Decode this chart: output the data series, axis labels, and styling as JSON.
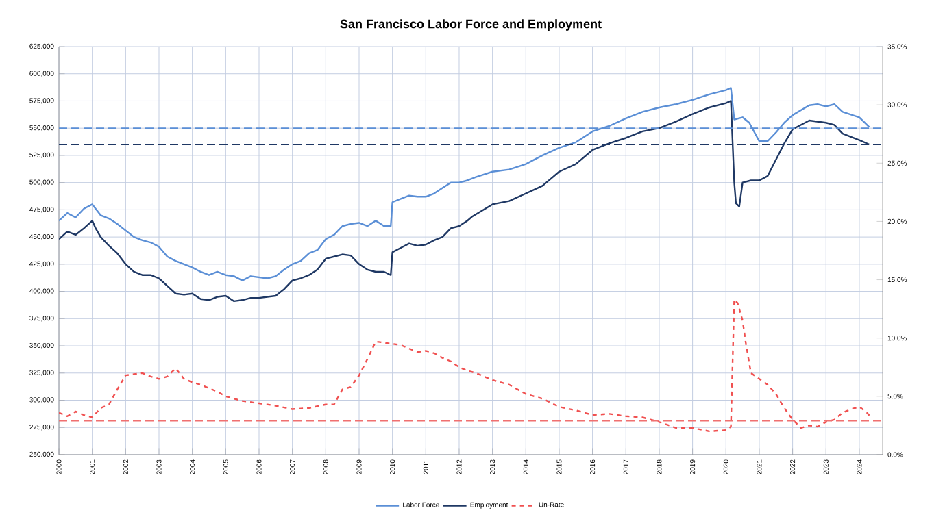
{
  "chart_data": {
    "type": "line",
    "title": "San Francisco Labor Force and Employment",
    "xlim": [
      2000,
      2024.7
    ],
    "xticks": [
      2000,
      2001,
      2002,
      2003,
      2004,
      2005,
      2006,
      2007,
      2008,
      2009,
      2010,
      2011,
      2012,
      2013,
      2014,
      2015,
      2016,
      2017,
      2018,
      2019,
      2020,
      2021,
      2022,
      2023,
      2024
    ],
    "ylim": [
      250000,
      625000
    ],
    "yticks": [
      {
        "value": 250000,
        "label": "250,000"
      },
      {
        "value": 275000,
        "label": "275,000"
      },
      {
        "value": 300000,
        "label": "300,000"
      },
      {
        "value": 325000,
        "label": "325,000"
      },
      {
        "value": 350000,
        "label": "350,000"
      },
      {
        "value": 375000,
        "label": "375,000"
      },
      {
        "value": 400000,
        "label": "400,000"
      },
      {
        "value": 425000,
        "label": "425,000"
      },
      {
        "value": 450000,
        "label": "450,000"
      },
      {
        "value": 475000,
        "label": "475,000"
      },
      {
        "value": 500000,
        "label": "500,000"
      },
      {
        "value": 525000,
        "label": "525,000"
      },
      {
        "value": 550000,
        "label": "550,000"
      },
      {
        "value": 575000,
        "label": "575,000"
      },
      {
        "value": 600000,
        "label": "600,000"
      },
      {
        "value": 625000,
        "label": "625,000"
      }
    ],
    "y2lim": [
      0,
      35
    ],
    "y2ticks": [
      {
        "value": 0,
        "label": "0.0%"
      },
      {
        "value": 5,
        "label": "5.0%"
      },
      {
        "value": 10,
        "label": "10.0%"
      },
      {
        "value": 15,
        "label": "15.0%"
      },
      {
        "value": 20,
        "label": "20.0%"
      },
      {
        "value": 25,
        "label": "25.0%"
      },
      {
        "value": 30,
        "label": "30.0%"
      },
      {
        "value": 35,
        "label": "35.0%"
      }
    ],
    "grid": true,
    "legend": "bottom",
    "series": [
      {
        "name": "Labor Force",
        "color": "#5b8fd6",
        "line_style": "solid",
        "x": [
          2000.0,
          2000.25,
          2000.5,
          2000.75,
          2001.0,
          2001.25,
          2001.5,
          2001.75,
          2002.0,
          2002.25,
          2002.5,
          2002.75,
          2003.0,
          2003.25,
          2003.5,
          2003.75,
          2004.0,
          2004.25,
          2004.5,
          2004.75,
          2005.0,
          2005.25,
          2005.5,
          2005.75,
          2006.0,
          2006.25,
          2006.5,
          2006.75,
          2007.0,
          2007.25,
          2007.5,
          2007.75,
          2008.0,
          2008.25,
          2008.5,
          2008.75,
          2009.0,
          2009.25,
          2009.5,
          2009.75,
          2009.95,
          2010.0,
          2010.25,
          2010.5,
          2010.75,
          2011.0,
          2011.25,
          2011.5,
          2011.75,
          2012.0,
          2012.25,
          2012.5,
          2013.0,
          2013.5,
          2014.0,
          2014.5,
          2015.0,
          2015.5,
          2016.0,
          2016.5,
          2017.0,
          2017.5,
          2018.0,
          2018.5,
          2019.0,
          2019.5,
          2020.0,
          2020.15,
          2020.25,
          2020.5,
          2020.7,
          2021.0,
          2021.25,
          2021.5,
          2021.75,
          2022.0,
          2022.5,
          2022.75,
          2023.0,
          2023.25,
          2023.5,
          2024.0,
          2024.3
        ],
        "values": [
          465000,
          472000,
          468000,
          476000,
          480000,
          470000,
          467000,
          462000,
          456000,
          450000,
          447000,
          445000,
          441000,
          432000,
          428000,
          425000,
          422000,
          418000,
          415000,
          418000,
          415000,
          414000,
          410000,
          414000,
          413000,
          412000,
          414000,
          420000,
          425000,
          428000,
          435000,
          438000,
          448000,
          452000,
          460000,
          462000,
          463000,
          460000,
          465000,
          460000,
          460000,
          482000,
          485000,
          488000,
          487000,
          487000,
          490000,
          495000,
          500000,
          500000,
          502000,
          505000,
          510000,
          512000,
          517000,
          525000,
          532000,
          537000,
          547000,
          552000,
          559000,
          565000,
          569000,
          572000,
          576000,
          581000,
          585000,
          587000,
          558000,
          560000,
          555000,
          538000,
          538000,
          546000,
          555000,
          562000,
          571000,
          572000,
          570000,
          572000,
          565000,
          560000,
          551000
        ]
      },
      {
        "name": "Employment",
        "color": "#1f3864",
        "line_style": "solid",
        "x": [
          2000.0,
          2000.25,
          2000.5,
          2000.75,
          2001.0,
          2001.1,
          2001.25,
          2001.5,
          2001.75,
          2002.0,
          2002.25,
          2002.5,
          2002.75,
          2003.0,
          2003.25,
          2003.5,
          2003.75,
          2004.0,
          2004.25,
          2004.5,
          2004.75,
          2005.0,
          2005.25,
          2005.5,
          2005.75,
          2006.0,
          2006.25,
          2006.5,
          2006.75,
          2007.0,
          2007.25,
          2007.5,
          2007.75,
          2008.0,
          2008.25,
          2008.5,
          2008.75,
          2009.0,
          2009.25,
          2009.5,
          2009.75,
          2009.95,
          2010.0,
          2010.25,
          2010.5,
          2010.75,
          2011.0,
          2011.25,
          2011.5,
          2011.75,
          2012.0,
          2012.25,
          2012.4,
          2013.0,
          2013.5,
          2014.0,
          2014.5,
          2015.0,
          2015.5,
          2016.0,
          2016.5,
          2017.0,
          2017.5,
          2018.0,
          2018.5,
          2019.0,
          2019.5,
          2020.0,
          2020.15,
          2020.25,
          2020.3,
          2020.4,
          2020.5,
          2020.75,
          2021.0,
          2021.25,
          2021.5,
          2021.75,
          2022.0,
          2022.5,
          2023.0,
          2023.25,
          2023.5,
          2024.0,
          2024.3
        ],
        "values": [
          448000,
          455000,
          452000,
          458000,
          465000,
          458000,
          450000,
          442000,
          435000,
          425000,
          418000,
          415000,
          415000,
          412000,
          405000,
          398000,
          397000,
          398000,
          393000,
          392000,
          395000,
          396000,
          391000,
          392000,
          394000,
          394000,
          395000,
          396000,
          402000,
          410000,
          412000,
          415000,
          420000,
          430000,
          432000,
          434000,
          433000,
          425000,
          420000,
          418000,
          418000,
          415000,
          436000,
          440000,
          444000,
          442000,
          443000,
          447000,
          450000,
          458000,
          460000,
          465000,
          469000,
          480000,
          483000,
          490000,
          497000,
          510000,
          517000,
          530000,
          536000,
          541000,
          547000,
          550000,
          556000,
          563000,
          569000,
          573000,
          575000,
          500000,
          481000,
          478000,
          500000,
          502000,
          502000,
          506000,
          521000,
          536000,
          549000,
          557000,
          555000,
          553000,
          545000,
          539000,
          535000
        ]
      },
      {
        "name": "Un-Rate",
        "color": "#f05050",
        "line_style": "dashed",
        "axis": "y2",
        "x": [
          2000.0,
          2000.25,
          2000.5,
          2000.75,
          2001.0,
          2001.25,
          2001.5,
          2001.75,
          2002.0,
          2002.25,
          2002.5,
          2002.75,
          2003.0,
          2003.25,
          2003.5,
          2003.75,
          2004.0,
          2004.25,
          2004.5,
          2004.75,
          2005.0,
          2005.5,
          2006.0,
          2006.5,
          2007.0,
          2007.5,
          2008.0,
          2008.25,
          2008.5,
          2008.75,
          2009.0,
          2009.25,
          2009.5,
          2009.75,
          2010.0,
          2010.25,
          2010.5,
          2010.75,
          2011.0,
          2011.25,
          2011.5,
          2011.75,
          2012.0,
          2012.25,
          2012.5,
          2013.0,
          2013.5,
          2014.0,
          2014.5,
          2015.0,
          2015.5,
          2016.0,
          2016.5,
          2017.0,
          2017.5,
          2018.0,
          2018.5,
          2019.0,
          2019.5,
          2020.0,
          2020.15,
          2020.25,
          2020.35,
          2020.5,
          2020.6,
          2020.75,
          2021.0,
          2021.25,
          2021.5,
          2021.75,
          2022.0,
          2022.25,
          2022.5,
          2022.75,
          2023.0,
          2023.25,
          2023.5,
          2023.75,
          2024.0,
          2024.2,
          2024.35
        ],
        "values": [
          3.6,
          3.3,
          3.7,
          3.4,
          3.2,
          4.0,
          4.3,
          5.6,
          6.8,
          6.9,
          7.0,
          6.7,
          6.5,
          6.7,
          7.4,
          6.5,
          6.2,
          6.0,
          5.7,
          5.4,
          5.0,
          4.6,
          4.4,
          4.2,
          3.9,
          4.0,
          4.3,
          4.3,
          5.6,
          5.8,
          6.8,
          8.2,
          9.7,
          9.6,
          9.5,
          9.4,
          9.1,
          8.8,
          8.9,
          8.7,
          8.3,
          8.0,
          7.5,
          7.2,
          7.0,
          6.4,
          6.0,
          5.2,
          4.8,
          4.1,
          3.8,
          3.4,
          3.5,
          3.3,
          3.2,
          2.8,
          2.3,
          2.3,
          2.0,
          2.1,
          2.4,
          13.3,
          13.0,
          11.5,
          9.5,
          7.0,
          6.5,
          6.0,
          5.2,
          4.0,
          3.0,
          2.3,
          2.5,
          2.4,
          2.8,
          3.0,
          3.6,
          3.9,
          4.1,
          3.7,
          3.2
        ]
      }
    ],
    "ref_lines": [
      {
        "axis": "y",
        "value": 550000,
        "color": "#5b8fd6",
        "line_style": "dashed"
      },
      {
        "axis": "y",
        "value": 535000,
        "color": "#1f3864",
        "line_style": "dashed"
      },
      {
        "axis": "y2",
        "value": 2.9,
        "color": "#f07070",
        "line_style": "dashed"
      }
    ]
  }
}
